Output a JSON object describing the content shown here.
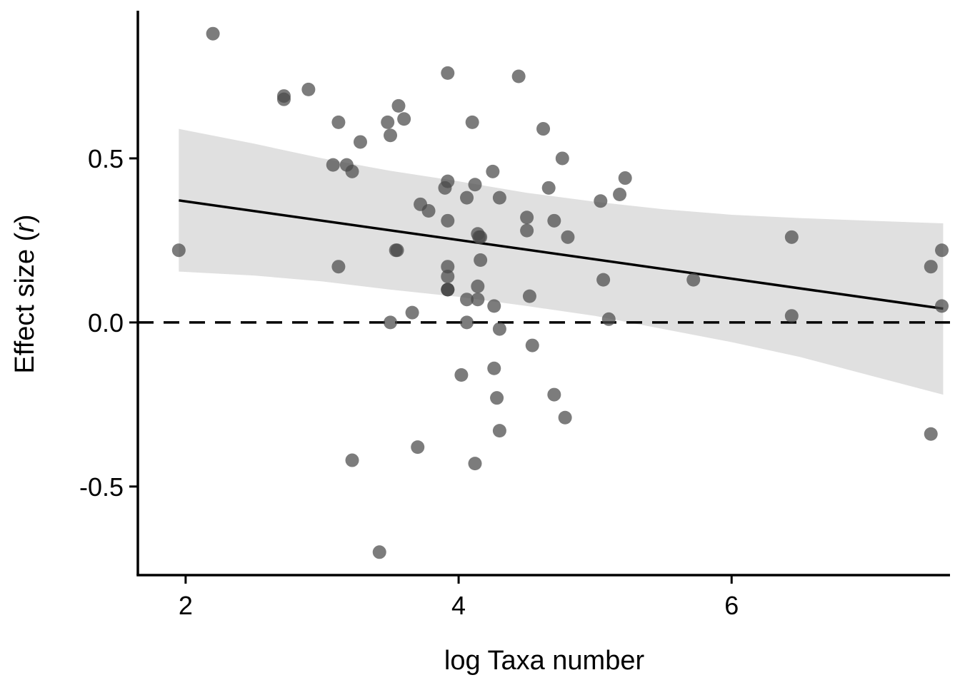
{
  "chart_data": {
    "type": "scatter",
    "title": "",
    "xlabel": "log Taxa number",
    "ylabel_parts": [
      "Effect size (",
      "r",
      ")"
    ],
    "xlim": [
      1.65,
      7.6
    ],
    "ylim": [
      -0.77,
      0.95
    ],
    "xticks": [
      2,
      4,
      6
    ],
    "xtick_labels": [
      "2",
      "4",
      "6"
    ],
    "yticks": [
      -0.5,
      0.0,
      0.5
    ],
    "ytick_labels": [
      "-0.5",
      "0.0",
      "0.5"
    ],
    "grid": false,
    "reference_line": {
      "y": 0.0,
      "style": "dashed",
      "color": "#000000"
    },
    "fit_line": {
      "x": [
        1.95,
        7.55
      ],
      "y": [
        0.372,
        0.042
      ],
      "color": "#000000"
    },
    "confidence_band": {
      "x": [
        1.95,
        2.5,
        3.0,
        3.5,
        4.0,
        4.5,
        5.0,
        5.5,
        6.0,
        6.5,
        7.0,
        7.55
      ],
      "upper": [
        0.59,
        0.545,
        0.5,
        0.462,
        0.43,
        0.395,
        0.368,
        0.345,
        0.328,
        0.318,
        0.31,
        0.302
      ],
      "lower": [
        0.155,
        0.143,
        0.125,
        0.1,
        0.078,
        0.05,
        0.02,
        -0.02,
        -0.06,
        -0.105,
        -0.16,
        -0.22
      ],
      "color": "#e0e0e0"
    },
    "point_color": "#4a4a4a",
    "point_opacity": 0.72,
    "series": [
      {
        "x": [
          1.95,
          2.2,
          2.72,
          2.72,
          2.9,
          3.12,
          3.12,
          3.08,
          3.18,
          3.22,
          3.22,
          3.28,
          3.42,
          3.48,
          3.5,
          3.5,
          3.54,
          3.55,
          3.56,
          3.6,
          3.66,
          3.7,
          3.72,
          3.78,
          3.9,
          3.92,
          3.92,
          3.92,
          3.92,
          3.92,
          3.92,
          3.92,
          3.92,
          4.02,
          4.06,
          4.06,
          4.06,
          4.1,
          4.12,
          4.12,
          4.14,
          4.14,
          4.14,
          4.15,
          4.16,
          4.16,
          4.25,
          4.26,
          4.26,
          4.28,
          4.3,
          4.3,
          4.3,
          4.44,
          4.5,
          4.5,
          4.52,
          4.54,
          4.62,
          4.66,
          4.7,
          4.7,
          4.76,
          4.78,
          4.8,
          5.04,
          5.06,
          5.1,
          5.18,
          5.22,
          5.72,
          6.44,
          6.44,
          7.46,
          7.46,
          7.54,
          7.54
        ],
        "y": [
          0.22,
          0.88,
          0.69,
          0.68,
          0.71,
          0.61,
          0.17,
          0.48,
          0.48,
          0.46,
          -0.42,
          0.55,
          -0.7,
          0.61,
          0.57,
          0.0,
          0.22,
          0.22,
          0.66,
          0.62,
          0.03,
          -0.38,
          0.36,
          0.34,
          0.41,
          0.76,
          0.43,
          0.31,
          0.17,
          0.14,
          0.1,
          0.1,
          0.1,
          -0.16,
          0.07,
          0.38,
          0.0,
          0.61,
          0.42,
          -0.43,
          0.27,
          0.11,
          0.07,
          0.26,
          0.19,
          0.26,
          0.46,
          0.05,
          -0.14,
          -0.23,
          0.38,
          -0.02,
          -0.33,
          0.75,
          0.32,
          0.28,
          0.08,
          -0.07,
          0.59,
          0.41,
          0.31,
          -0.22,
          0.5,
          -0.29,
          0.26,
          0.37,
          0.13,
          0.01,
          0.39,
          0.44,
          0.13,
          0.26,
          0.02,
          0.17,
          -0.34,
          0.22,
          0.05
        ]
      }
    ]
  }
}
